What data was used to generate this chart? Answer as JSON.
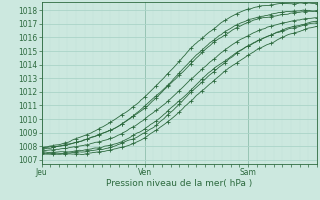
{
  "background_color": "#cce8df",
  "grid_color_major": "#aad4c8",
  "grid_color_minor": "#c0e0d8",
  "line_color": "#2d6a3f",
  "ylabel_ticks": [
    1007,
    1008,
    1009,
    1010,
    1011,
    1012,
    1013,
    1014,
    1015,
    1016,
    1017,
    1018
  ],
  "ylim": [
    1006.7,
    1018.6
  ],
  "xlim": [
    0,
    96
  ],
  "xlabel": "Pression niveau de la mer( hPa )",
  "day_labels": [
    "Jeu",
    "Ven",
    "Sam"
  ],
  "day_positions": [
    0,
    36,
    72
  ],
  "tick_fontsize": 5.5,
  "xlabel_fontsize": 6.5
}
